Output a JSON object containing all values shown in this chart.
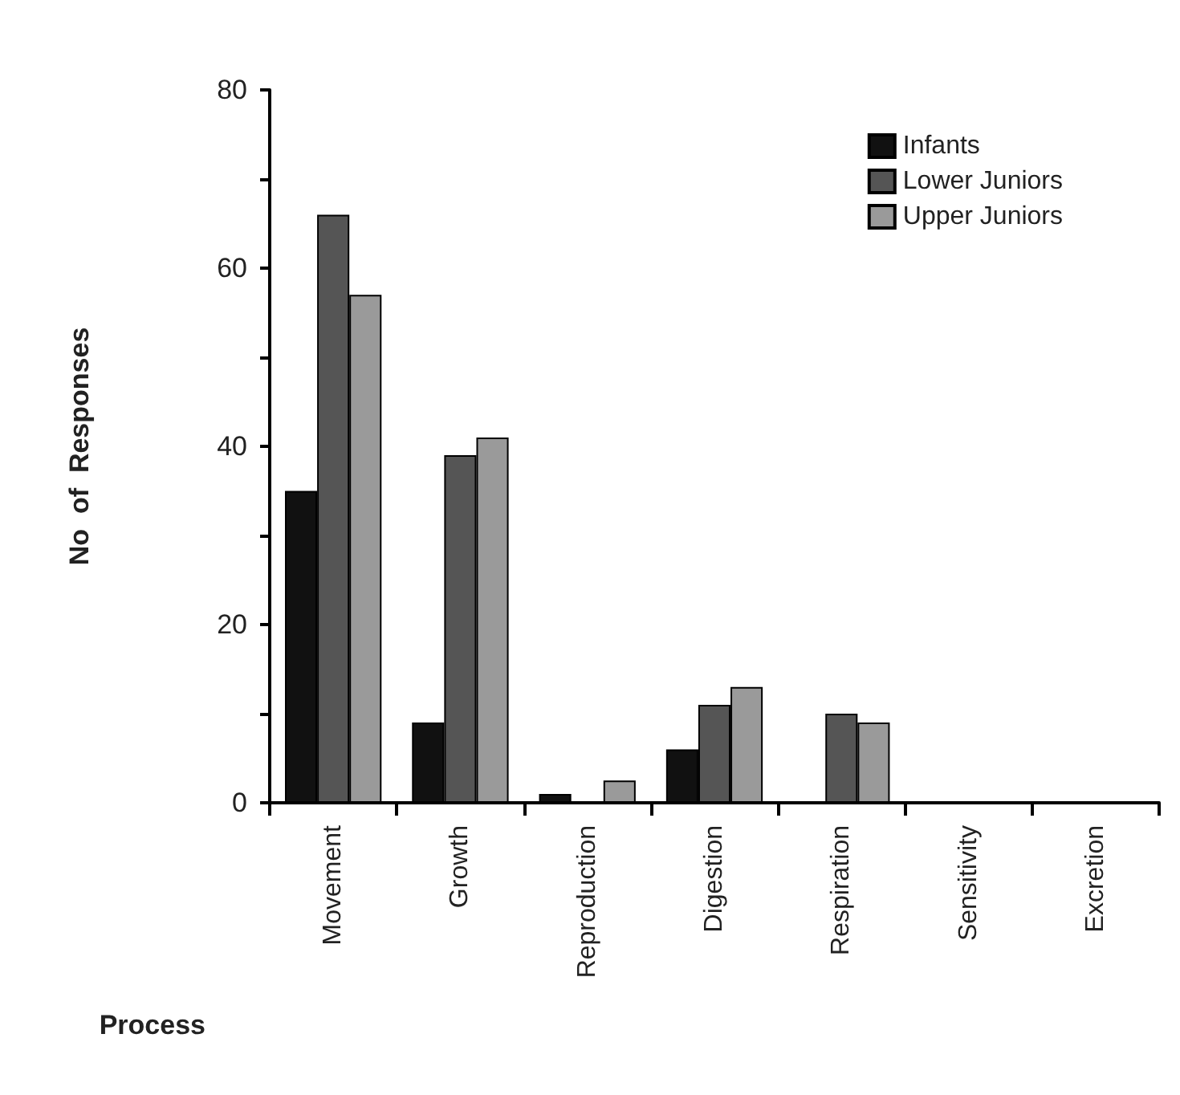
{
  "chart_data": {
    "type": "bar",
    "xlabel": "Process",
    "ylabel": "No  of  Responses",
    "categories": [
      "Movement",
      "Growth",
      "Reproduction",
      "Digestion",
      "Respiration",
      "Sensitivity",
      "Excretion"
    ],
    "series": [
      {
        "name": "Infants",
        "color": "#111111",
        "values": [
          35,
          9,
          1,
          6,
          0,
          0,
          0
        ]
      },
      {
        "name": "Lower Juniors",
        "color": "#555555",
        "values": [
          66,
          39,
          0,
          11,
          10,
          0,
          0
        ]
      },
      {
        "name": "Upper Juniors",
        "color": "#9a9a9a",
        "values": [
          57,
          41,
          2.5,
          13,
          9,
          0,
          0
        ]
      }
    ],
    "ylim": [
      0,
      80
    ],
    "yticks": [
      0,
      {
        "value": 10,
        "label": null
      },
      20,
      {
        "value": 30,
        "label": null
      },
      40,
      {
        "value": 50,
        "label": null
      },
      60,
      {
        "value": 70,
        "label": null
      },
      80
    ],
    "grid": false,
    "legend": "top right"
  }
}
